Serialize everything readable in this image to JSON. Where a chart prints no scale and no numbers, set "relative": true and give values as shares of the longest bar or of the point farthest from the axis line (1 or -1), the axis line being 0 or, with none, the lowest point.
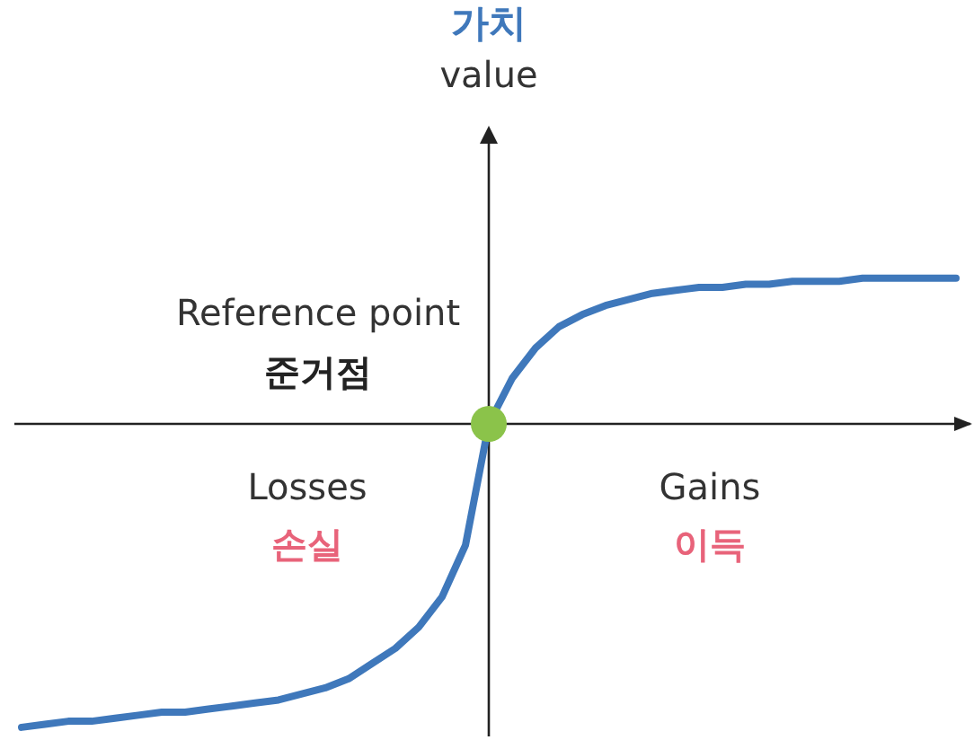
{
  "chart_data": {
    "type": "line",
    "title": "가치",
    "subtitle": "value",
    "relative": true,
    "legend": false,
    "marker": "none",
    "categories": [
      null,
      null,
      null,
      null,
      null,
      null,
      null,
      null,
      null,
      null,
      null,
      null,
      null,
      null,
      null,
      null,
      null,
      null,
      null,
      null,
      null,
      null,
      null,
      null,
      null,
      null,
      null,
      null,
      null,
      null,
      null,
      null,
      null,
      null,
      null,
      null,
      null,
      null,
      null,
      null,
      null
    ],
    "series": [
      {
        "color": "#3f78bb",
        "values": [
          -1,
          -0.99,
          -0.98,
          -0.98,
          -0.97,
          -0.96,
          -0.95,
          -0.95,
          -0.94,
          -0.93,
          -0.92,
          -0.91,
          -0.89,
          -0.87,
          -0.84,
          -0.79,
          -0.74,
          -0.67,
          -0.57,
          -0.4,
          0,
          0.15,
          0.25,
          0.32,
          0.36,
          0.39,
          0.41,
          0.43,
          0.44,
          0.45,
          0.45,
          0.46,
          0.46,
          0.47,
          0.47,
          0.47,
          0.48,
          0.48,
          0.48,
          0.48,
          0.48
        ]
      }
    ],
    "annotations": [
      "Reference point",
      "준거점",
      "Losses",
      "손실",
      "Gains",
      "이득"
    ]
  }
}
